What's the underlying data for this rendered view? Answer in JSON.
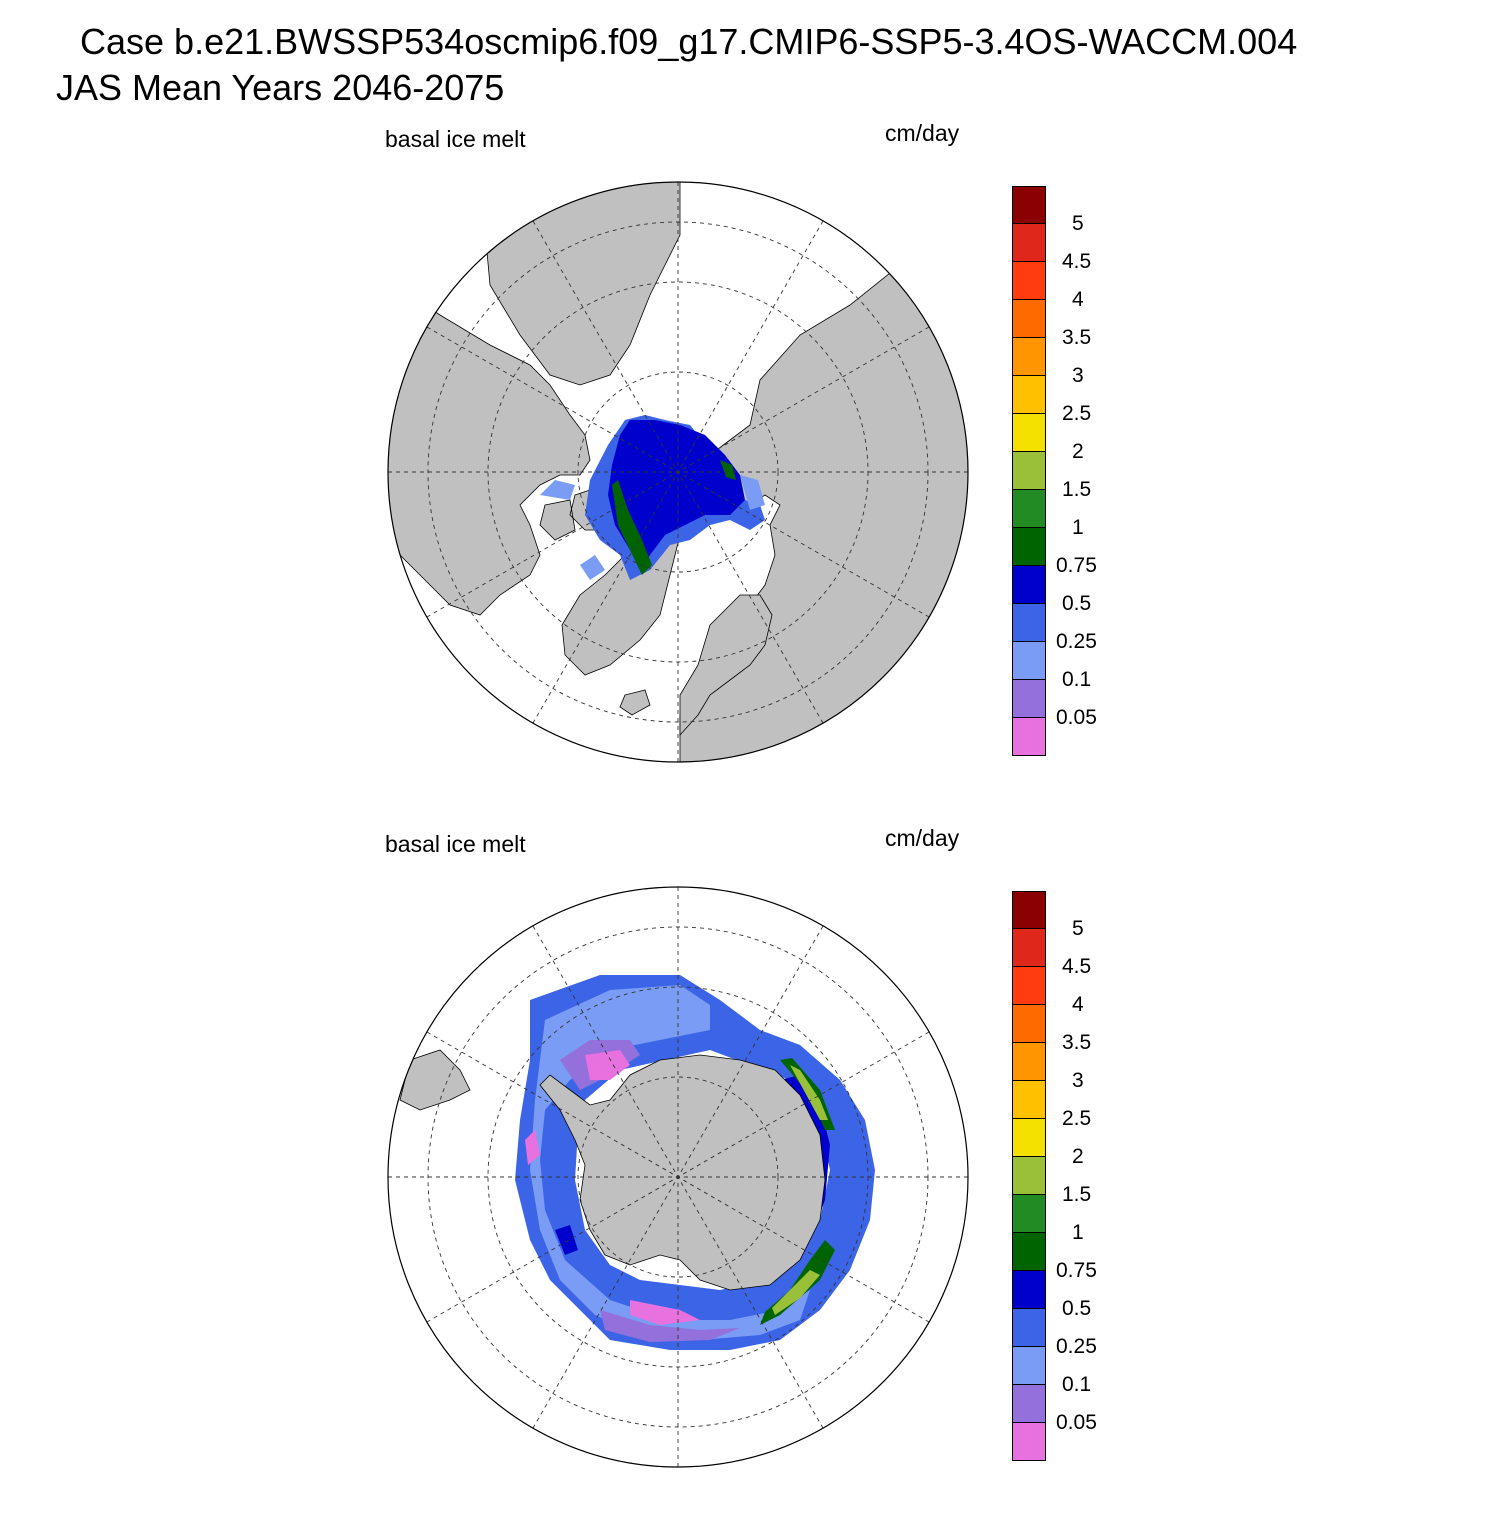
{
  "title_line1": "Case b.e21.BWSSP534oscmip6.f09_g17.CMIP6-SSP5-3.4OS-WACCM.004",
  "title_line2": "JAS Mean   Years 2046-2075",
  "panels": [
    {
      "id": "north",
      "left_label": "basal ice melt",
      "right_label": "cm/day",
      "projection": "north-polar-stereographic"
    },
    {
      "id": "south",
      "left_label": "basal ice melt",
      "right_label": "cm/day",
      "projection": "south-polar-stereographic"
    }
  ],
  "colorbar": {
    "labels": [
      "5",
      "4.5",
      "4",
      "3.5",
      "3",
      "2.5",
      "2",
      "1.5",
      "1",
      "0.75",
      "0.5",
      "0.25",
      "0.1",
      "0.05"
    ],
    "colors": [
      "#8b0000",
      "#e0271c",
      "#ff3b0f",
      "#ff6a00",
      "#ff9500",
      "#ffc000",
      "#f4e100",
      "#9ac03a",
      "#238b23",
      "#006400",
      "#0000cd",
      "#3c64e6",
      "#7a9cf4",
      "#9370db",
      "#e871e0"
    ]
  },
  "colors": {
    "land": "#c0c0c0",
    "ocean_no_data": "#ffffff",
    "outline": "#000000"
  }
}
